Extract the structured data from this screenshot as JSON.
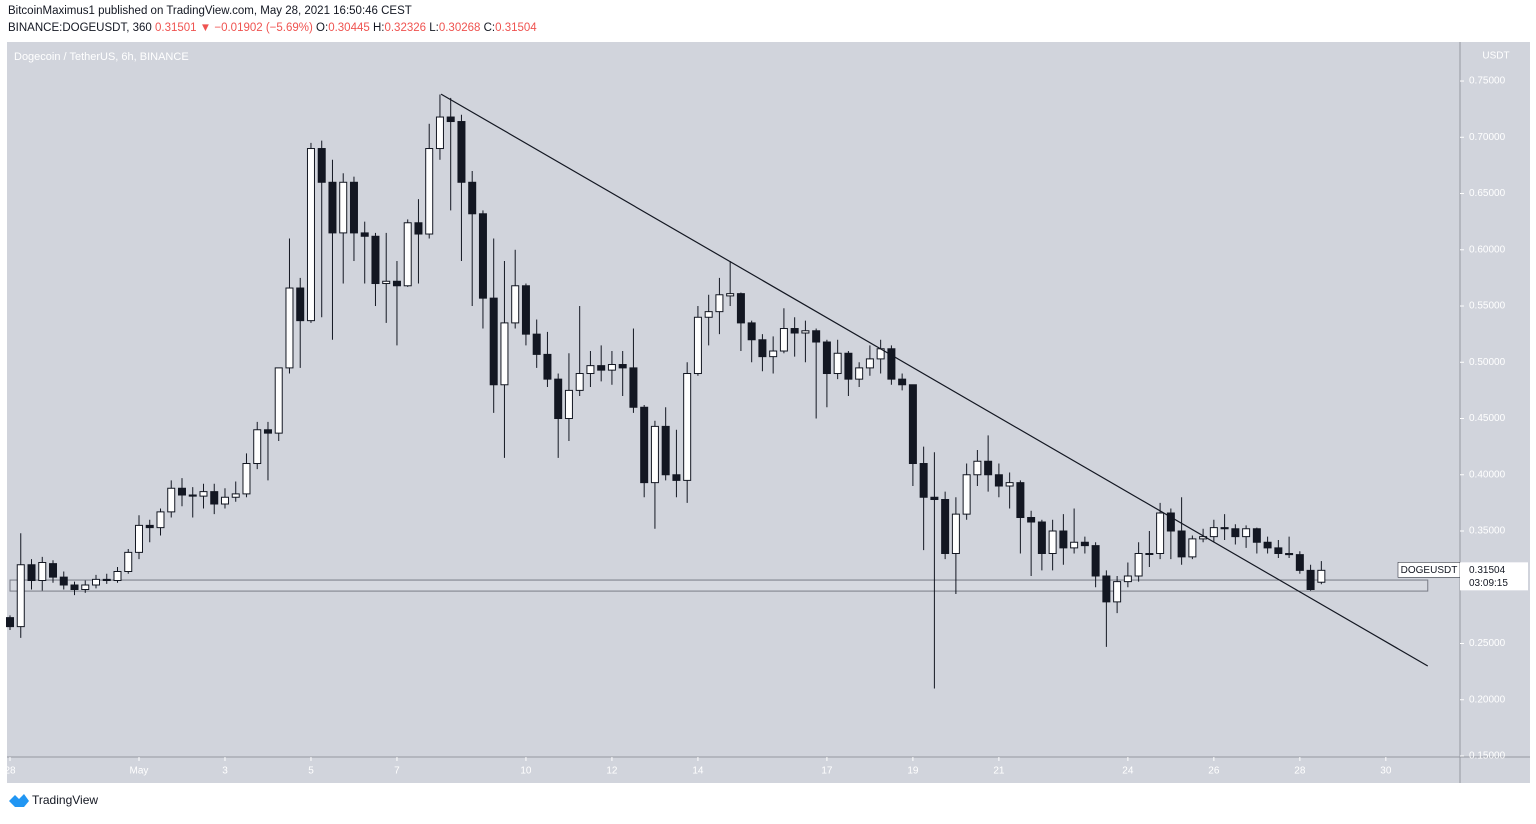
{
  "header": {
    "line1": "BitcoinMaximus1 published on TradingView.com, May 28, 2021 16:50:46 CEST",
    "symbol": "BINANCE:DOGEUSDT, 360",
    "price": "0.31501",
    "arrow": "▼",
    "change": "−0.01902 (−5.69%)",
    "o_label": "O:",
    "o": "0.30445",
    "h_label": "H:",
    "h": "0.32326",
    "l_label": "L:",
    "l": "0.30268",
    "c_label": "C:",
    "c": "0.31504"
  },
  "footer": {
    "brand": "TradingView"
  },
  "chart_data": {
    "type": "candlestick",
    "title": "Dogecoin / TetherUS, 6h, BINANCE",
    "y_unit": "USDT",
    "open": [
      0.273,
      0.265,
      0.32,
      0.306,
      0.321,
      0.309,
      0.302,
      0.298,
      0.302,
      0.307,
      0.306,
      0.314,
      0.331,
      0.355,
      0.353,
      0.367,
      0.388,
      0.382,
      0.381,
      0.385,
      0.374,
      0.38,
      0.383,
      0.41,
      0.44,
      0.437,
      0.495,
      0.566,
      0.537,
      0.69,
      0.66,
      0.615,
      0.66,
      0.615,
      0.612,
      0.57,
      0.572,
      0.568,
      0.624,
      0.614,
      0.69,
      0.718,
      0.714,
      0.66,
      0.632,
      0.557,
      0.48,
      0.535,
      0.568,
      0.525,
      0.507,
      0.485,
      0.45,
      0.475,
      0.49,
      0.497,
      0.493,
      0.498,
      0.495,
      0.46,
      0.393,
      0.443,
      0.4,
      0.395,
      0.49,
      0.54,
      0.545,
      0.559,
      0.561,
      0.535,
      0.52,
      0.505,
      0.51,
      0.53,
      0.526,
      0.528,
      0.518,
      0.49,
      0.508,
      0.485,
      0.495,
      0.503,
      0.512,
      0.485,
      0.48,
      0.41,
      0.38,
      0.378,
      0.33,
      0.365,
      0.4,
      0.412,
      0.4,
      0.39,
      0.393,
      0.362,
      0.358,
      0.33,
      0.35,
      0.335,
      0.34,
      0.337,
      0.31,
      0.287,
      0.305,
      0.31,
      0.33,
      0.33,
      0.366,
      0.35,
      0.327,
      0.343,
      0.345,
      0.353,
      0.352,
      0.345,
      0.352,
      0.34,
      0.335,
      0.33,
      0.329,
      0.315,
      0.30445
    ],
    "high": [
      0.275,
      0.348,
      0.325,
      0.327,
      0.324,
      0.314,
      0.305,
      0.306,
      0.311,
      0.312,
      0.318,
      0.334,
      0.364,
      0.36,
      0.37,
      0.395,
      0.397,
      0.389,
      0.392,
      0.392,
      0.388,
      0.394,
      0.419,
      0.447,
      0.447,
      0.495,
      0.61,
      0.575,
      0.695,
      0.697,
      0.68,
      0.668,
      0.665,
      0.625,
      0.615,
      0.615,
      0.59,
      0.627,
      0.645,
      0.712,
      0.738,
      0.735,
      0.72,
      0.67,
      0.635,
      0.61,
      0.59,
      0.6,
      0.57,
      0.538,
      0.527,
      0.49,
      0.508,
      0.55,
      0.51,
      0.515,
      0.51,
      0.51,
      0.53,
      0.462,
      0.448,
      0.46,
      0.44,
      0.5,
      0.55,
      0.56,
      0.575,
      0.59,
      0.562,
      0.537,
      0.525,
      0.523,
      0.548,
      0.54,
      0.537,
      0.53,
      0.52,
      0.52,
      0.51,
      0.5,
      0.515,
      0.52,
      0.515,
      0.49,
      0.48,
      0.425,
      0.42,
      0.385,
      0.38,
      0.41,
      0.422,
      0.435,
      0.41,
      0.402,
      0.395,
      0.368,
      0.36,
      0.36,
      0.365,
      0.37,
      0.345,
      0.34,
      0.315,
      0.31,
      0.322,
      0.34,
      0.35,
      0.375,
      0.37,
      0.38,
      0.346,
      0.352,
      0.36,
      0.365,
      0.356,
      0.355,
      0.353,
      0.345,
      0.342,
      0.345,
      0.332,
      0.32,
      0.32326
    ],
    "low": [
      0.262,
      0.255,
      0.298,
      0.297,
      0.304,
      0.298,
      0.293,
      0.295,
      0.299,
      0.303,
      0.304,
      0.312,
      0.325,
      0.34,
      0.346,
      0.362,
      0.372,
      0.362,
      0.37,
      0.365,
      0.37,
      0.376,
      0.38,
      0.405,
      0.395,
      0.43,
      0.49,
      0.495,
      0.535,
      0.54,
      0.52,
      0.57,
      0.59,
      0.57,
      0.55,
      0.535,
      0.515,
      0.567,
      0.57,
      0.61,
      0.68,
      0.635,
      0.59,
      0.55,
      0.53,
      0.455,
      0.415,
      0.53,
      0.515,
      0.495,
      0.478,
      0.415,
      0.43,
      0.47,
      0.478,
      0.483,
      0.48,
      0.47,
      0.455,
      0.38,
      0.352,
      0.395,
      0.38,
      0.375,
      0.488,
      0.515,
      0.525,
      0.55,
      0.51,
      0.5,
      0.492,
      0.49,
      0.508,
      0.505,
      0.5,
      0.45,
      0.46,
      0.485,
      0.47,
      0.478,
      0.488,
      0.49,
      0.48,
      0.475,
      0.39,
      0.333,
      0.21,
      0.325,
      0.294,
      0.36,
      0.39,
      0.385,
      0.38,
      0.37,
      0.33,
      0.31,
      0.315,
      0.315,
      0.32,
      0.33,
      0.33,
      0.3,
      0.247,
      0.277,
      0.3,
      0.305,
      0.318,
      0.325,
      0.325,
      0.32,
      0.325,
      0.34,
      0.34,
      0.342,
      0.338,
      0.335,
      0.33,
      0.33,
      0.326,
      0.326,
      0.312,
      0.297,
      0.30268
    ],
    "close": [
      0.265,
      0.32,
      0.306,
      0.322,
      0.309,
      0.302,
      0.298,
      0.302,
      0.307,
      0.306,
      0.314,
      0.331,
      0.355,
      0.353,
      0.367,
      0.388,
      0.382,
      0.381,
      0.385,
      0.374,
      0.38,
      0.383,
      0.41,
      0.44,
      0.437,
      0.495,
      0.566,
      0.537,
      0.69,
      0.66,
      0.615,
      0.66,
      0.615,
      0.612,
      0.57,
      0.572,
      0.568,
      0.624,
      0.614,
      0.69,
      0.718,
      0.714,
      0.66,
      0.632,
      0.557,
      0.48,
      0.535,
      0.568,
      0.525,
      0.507,
      0.485,
      0.45,
      0.475,
      0.49,
      0.497,
      0.493,
      0.498,
      0.495,
      0.46,
      0.393,
      0.443,
      0.4,
      0.395,
      0.49,
      0.54,
      0.545,
      0.56,
      0.561,
      0.535,
      0.52,
      0.505,
      0.51,
      0.53,
      0.526,
      0.528,
      0.518,
      0.49,
      0.508,
      0.485,
      0.495,
      0.503,
      0.512,
      0.485,
      0.48,
      0.41,
      0.38,
      0.378,
      0.33,
      0.365,
      0.4,
      0.412,
      0.4,
      0.39,
      0.393,
      0.362,
      0.358,
      0.33,
      0.35,
      0.335,
      0.34,
      0.337,
      0.31,
      0.287,
      0.305,
      0.31,
      0.33,
      0.33,
      0.366,
      0.35,
      0.327,
      0.343,
      0.345,
      0.353,
      0.352,
      0.345,
      0.352,
      0.34,
      0.335,
      0.33,
      0.329,
      0.315,
      0.298,
      0.31504
    ],
    "up_color": "#ffffff",
    "down_color": "#131722",
    "background": "#d1d4dc",
    "xlim": [
      -0.28,
      134.9
    ],
    "xticks": [
      {
        "value": 0,
        "label": "28"
      },
      {
        "value": 12,
        "label": "May"
      },
      {
        "value": 20,
        "label": "3"
      },
      {
        "value": 28,
        "label": "5"
      },
      {
        "value": 36,
        "label": "7"
      },
      {
        "value": 48,
        "label": "10"
      },
      {
        "value": 56,
        "label": "12"
      },
      {
        "value": 64,
        "label": "14"
      },
      {
        "value": 76,
        "label": "17"
      },
      {
        "value": 84,
        "label": "19"
      },
      {
        "value": 92,
        "label": "21"
      },
      {
        "value": 104,
        "label": "24"
      },
      {
        "value": 112,
        "label": "26"
      },
      {
        "value": 120,
        "label": "28"
      },
      {
        "value": 128,
        "label": "30"
      }
    ],
    "ylim": [
      0.1491,
      0.7847
    ],
    "yticks": [
      {
        "value": 0.15,
        "label": "0.15000"
      },
      {
        "value": 0.2,
        "label": "0.20000"
      },
      {
        "value": 0.25,
        "label": "0.25000"
      },
      {
        "value": 0.3,
        "label": "0.30000"
      },
      {
        "value": 0.35,
        "label": "0.35000"
      },
      {
        "value": 0.4,
        "label": "0.40000"
      },
      {
        "value": 0.45,
        "label": "0.45000"
      },
      {
        "value": 0.5,
        "label": "0.50000"
      },
      {
        "value": 0.55,
        "label": "0.55000"
      },
      {
        "value": 0.6,
        "label": "0.60000"
      },
      {
        "value": 0.65,
        "label": "0.65000"
      },
      {
        "value": 0.7,
        "label": "0.70000"
      },
      {
        "value": 0.75,
        "label": "0.75000"
      }
    ],
    "trendline": {
      "x": [
        40.1,
        131.9
      ],
      "y": [
        0.7384,
        0.23
      ]
    },
    "support_zone": {
      "x": [
        0,
        131.9
      ],
      "y": [
        0.2966,
        0.3064
      ]
    },
    "last_price": {
      "name": "DOGEUSDT",
      "value": 0.31504,
      "countdown": "03:09:15"
    }
  }
}
